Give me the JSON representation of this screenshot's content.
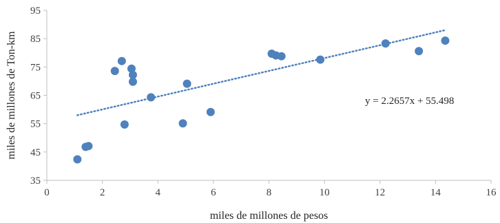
{
  "chart_data": {
    "type": "scatter",
    "title": "",
    "xlabel": "miles de millones de pesos",
    "ylabel": "miles de millones de Ton-km",
    "xlim": [
      0,
      16
    ],
    "ylim": [
      35,
      95
    ],
    "xticks": [
      "0",
      "2",
      "4",
      "6",
      "8",
      "10",
      "12",
      "14",
      "16"
    ],
    "yticks": [
      "35",
      "45",
      "55",
      "65",
      "75",
      "85",
      "95"
    ],
    "grid": "none",
    "marker_color": "#4f81bd",
    "trendline_color": "#4f81bd",
    "points": [
      {
        "x": 1.1,
        "y": 42.4
      },
      {
        "x": 1.4,
        "y": 46.8
      },
      {
        "x": 1.5,
        "y": 47.1
      },
      {
        "x": 2.45,
        "y": 73.6
      },
      {
        "x": 2.7,
        "y": 77.1
      },
      {
        "x": 2.8,
        "y": 54.7
      },
      {
        "x": 3.05,
        "y": 74.4
      },
      {
        "x": 3.1,
        "y": 72.2
      },
      {
        "x": 3.1,
        "y": 69.8
      },
      {
        "x": 3.75,
        "y": 64.3
      },
      {
        "x": 4.9,
        "y": 55.1
      },
      {
        "x": 5.05,
        "y": 69.1
      },
      {
        "x": 5.9,
        "y": 59.1
      },
      {
        "x": 8.1,
        "y": 79.7
      },
      {
        "x": 8.25,
        "y": 79.1
      },
      {
        "x": 8.45,
        "y": 78.8
      },
      {
        "x": 9.85,
        "y": 77.6
      },
      {
        "x": 12.2,
        "y": 83.3
      },
      {
        "x": 13.4,
        "y": 80.6
      },
      {
        "x": 14.35,
        "y": 84.3
      }
    ],
    "trendline": {
      "style": "dotted",
      "x_start": 1.1,
      "x_end": 14.35,
      "equation_label": "y = 2.2657x + 55.498"
    }
  }
}
